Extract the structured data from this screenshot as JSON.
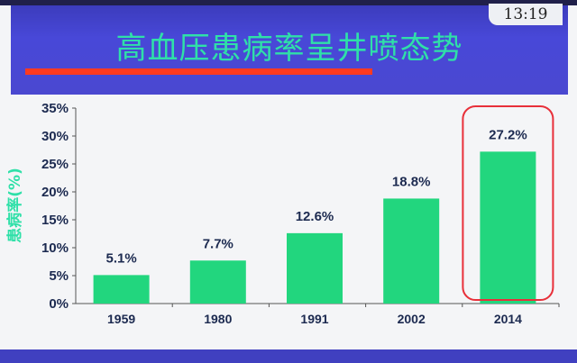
{
  "header": {
    "title": "高血压患病率呈井喷态势",
    "clock": "13:19"
  },
  "colors": {
    "bar": "#22d67e",
    "title": "#2fe0a8",
    "highlight": "#e8303a",
    "header": "#4848d8"
  },
  "chart_data": {
    "type": "bar",
    "title": "高血压患病率呈井喷态势",
    "xlabel": "",
    "ylabel": "患病率(%)",
    "categories": [
      "1959",
      "1980",
      "1991",
      "2002",
      "2014"
    ],
    "values": [
      5.1,
      7.7,
      12.6,
      18.8,
      27.2
    ],
    "data_labels": [
      "5.1%",
      "7.7%",
      "12.6%",
      "18.8%",
      "27.2%"
    ],
    "ylim": [
      0,
      35
    ],
    "yticks": [
      "0%",
      "5%",
      "10%",
      "15%",
      "20%",
      "25%",
      "30%",
      "35%"
    ],
    "grid": false,
    "highlight": "2014"
  }
}
